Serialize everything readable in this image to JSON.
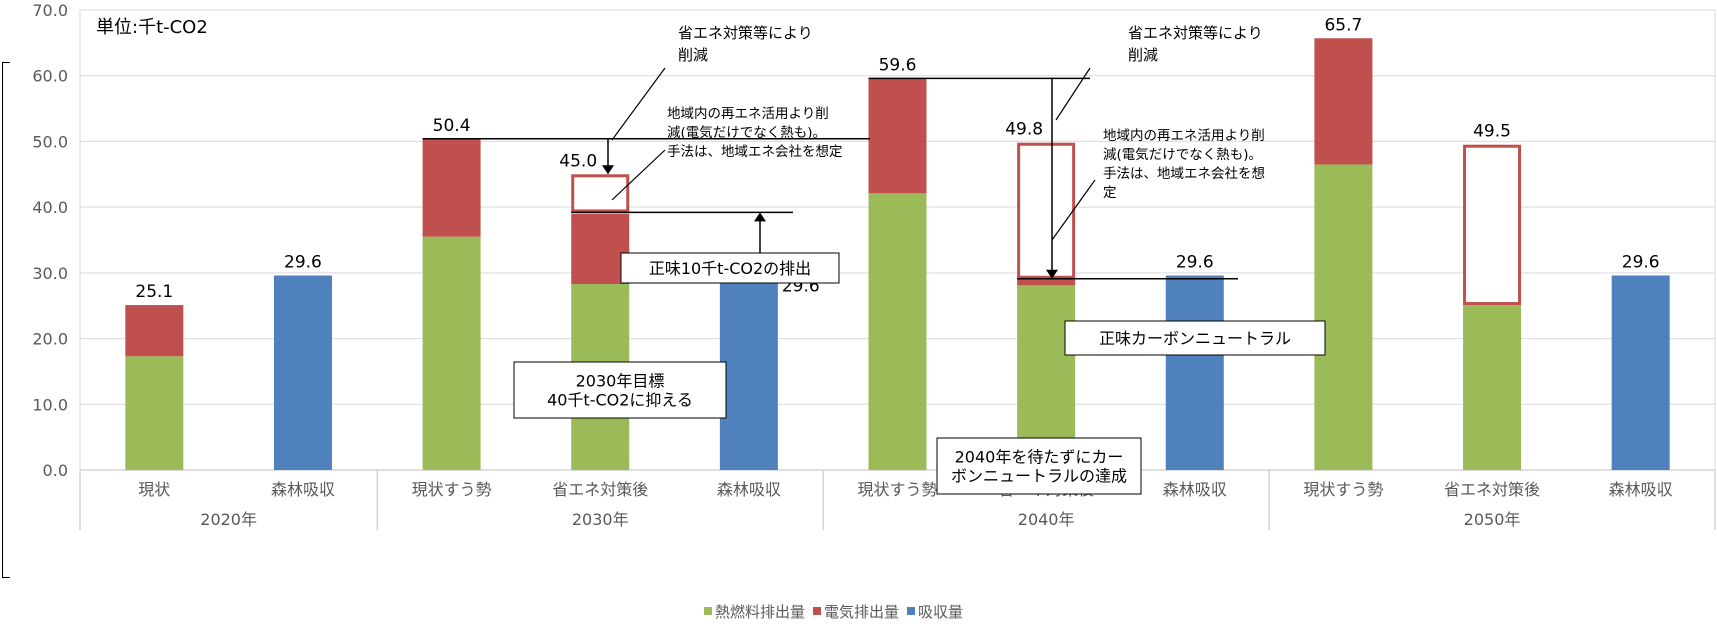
{
  "chart_data": {
    "type": "bar",
    "unit_label": "単位:千t-CO2",
    "ylim": [
      0,
      70
    ],
    "yticks": [
      "0.0",
      "10.0",
      "20.0",
      "30.0",
      "40.0",
      "50.0",
      "60.0",
      "70.0"
    ],
    "groups": [
      {
        "label": "2020年",
        "categories": [
          "現状",
          "森林吸収"
        ]
      },
      {
        "label": "2030年",
        "categories": [
          "現状すう勢",
          "省エネ対策後",
          "森林吸収"
        ]
      },
      {
        "label": "2040年",
        "categories": [
          "現状すう勢",
          "省エネ対策後",
          "森林吸収"
        ]
      },
      {
        "label": "2050年",
        "categories": [
          "現状すう勢",
          "省エネ対策後",
          "森林吸収"
        ]
      }
    ],
    "categories": [
      "現状",
      "森林吸収",
      "現状すう勢",
      "省エネ対策後",
      "森林吸収",
      "現状すう勢",
      "省エネ対策後",
      "森林吸収",
      "現状すう勢",
      "省エネ対策後",
      "森林吸収"
    ],
    "series": [
      {
        "name": "熱燃料排出量",
        "color": "#9bbb59",
        "values": [
          17.3,
          0,
          35.5,
          28.3,
          0,
          42.1,
          28.1,
          0,
          46.5,
          25.1,
          0
        ]
      },
      {
        "name": "電気排出量",
        "color": "#c0504d",
        "values": [
          7.8,
          0,
          14.9,
          10.7,
          0,
          17.5,
          1.0,
          0,
          19.2,
          0,
          0
        ]
      },
      {
        "name": "吸収量",
        "color": "#4f81bd",
        "values": [
          0,
          29.6,
          0,
          0,
          29.6,
          0,
          0,
          29.6,
          0,
          0,
          29.6
        ]
      }
    ],
    "hollow_box_color": "#c0504d",
    "hollow_boxes": [
      {
        "index": 3,
        "from": 39.2,
        "to": 45.0
      },
      {
        "index": 6,
        "from": 29.1,
        "to": 49.8
      },
      {
        "index": 9,
        "from": 25.1,
        "to": 49.5
      }
    ],
    "data_labels": [
      {
        "index": 0,
        "value": 25.1,
        "text": "25.1"
      },
      {
        "index": 1,
        "value": 29.6,
        "text": "29.6"
      },
      {
        "index": 2,
        "value": 50.4,
        "text": "50.4"
      },
      {
        "index": 3,
        "value": 45.0,
        "text": "45.0"
      },
      {
        "index": 4,
        "value": 29.6,
        "text": "29.6"
      },
      {
        "index": 5,
        "value": 59.6,
        "text": "59.6"
      },
      {
        "index": 6,
        "value": 49.8,
        "text": "49.8"
      },
      {
        "index": 7,
        "value": 29.6,
        "text": "29.6"
      },
      {
        "index": 8,
        "value": 65.7,
        "text": "65.7"
      },
      {
        "index": 9,
        "value": 49.5,
        "text": "49.5"
      },
      {
        "index": 10,
        "value": 29.6,
        "text": "29.6"
      }
    ],
    "annotations": {
      "savings_2030": [
        "省エネ対策等により",
        "削減"
      ],
      "renewable_2030": [
        "地域内の再エネ活用より削",
        "減(電気だけでなく熱も)。",
        "手法は、地域エネ会社を想定"
      ],
      "net_10": "正味10千t-CO2の排出",
      "target_2030": [
        "2030年目標",
        "40千t-CO2に抑える"
      ],
      "savings_2040": [
        "省エネ対策等により",
        "削減"
      ],
      "renewable_2040": [
        "地域内の再エネ活用より削",
        "減(電気だけでなく熱も)。",
        "手法は、地域エネ会社を想",
        "定"
      ],
      "net_zero": "正味カーボンニュートラル",
      "carbon_neutral_2040": [
        "2040年を待たずにカー",
        "ボンニュートラルの達成"
      ]
    },
    "legend": {
      "position": "bottom",
      "items": [
        {
          "label": "熱燃料排出量",
          "color": "#9bbb59"
        },
        {
          "label": "電気排出量",
          "color": "#c0504d"
        },
        {
          "label": "吸収量",
          "color": "#4f81bd"
        }
      ]
    }
  }
}
